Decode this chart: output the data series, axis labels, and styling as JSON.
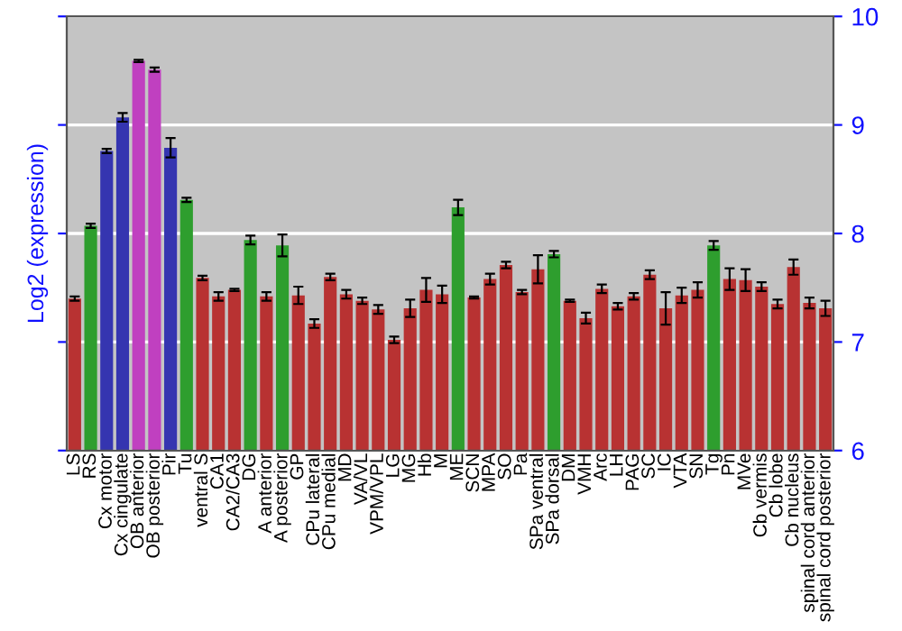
{
  "chart_data": {
    "type": "bar",
    "ylabel": "Log2 (expression)",
    "categories": [
      "LS",
      "RS",
      "Cx motor",
      "Cx cingulate",
      "OB anterior",
      "OB posterior",
      "Pir",
      "Tu",
      "ventral S",
      "CA1",
      "CA2/CA3",
      "DG",
      "A anterior",
      "A posterior",
      "GP",
      "CPu lateral",
      "CPu medial",
      "MD",
      "VA/VL",
      "VPM/VPL",
      "LG",
      "MG",
      "Hb",
      "M",
      "ME",
      "SCN",
      "MPA",
      "SO",
      "Pa",
      "SPa ventral",
      "SPa dorsal",
      "DM",
      "VMH",
      "Arc",
      "LH",
      "PAG",
      "SC",
      "IC",
      "VTA",
      "SN",
      "Tg",
      "Pn",
      "MVe",
      "Cb vermis",
      "Cb lobe",
      "Cb nucleus",
      "spinal cord anterior",
      "spinal cord posterior"
    ],
    "values": [
      7.4,
      8.07,
      8.76,
      9.07,
      9.59,
      9.51,
      8.79,
      8.31,
      7.59,
      7.42,
      7.48,
      7.94,
      7.42,
      7.89,
      7.43,
      7.17,
      7.6,
      7.44,
      7.38,
      7.3,
      7.02,
      7.31,
      7.48,
      7.44,
      8.24,
      7.41,
      7.58,
      7.71,
      7.46,
      7.67,
      7.81,
      7.38,
      7.22,
      7.49,
      7.33,
      7.42,
      7.62,
      7.31,
      7.43,
      7.48,
      7.89,
      7.58,
      7.57,
      7.51,
      7.35,
      7.69,
      7.36,
      7.31
    ],
    "errors": [
      0.02,
      0.02,
      0.02,
      0.04,
      0.01,
      0.02,
      0.09,
      0.02,
      0.02,
      0.04,
      0.01,
      0.04,
      0.04,
      0.1,
      0.08,
      0.04,
      0.03,
      0.04,
      0.03,
      0.04,
      0.03,
      0.08,
      0.11,
      0.08,
      0.07,
      0.01,
      0.05,
      0.03,
      0.02,
      0.13,
      0.03,
      0.01,
      0.05,
      0.04,
      0.03,
      0.03,
      0.04,
      0.15,
      0.07,
      0.07,
      0.04,
      0.1,
      0.1,
      0.04,
      0.04,
      0.07,
      0.05,
      0.07
    ],
    "colors": [
      "#b83232",
      "#2e9e2e",
      "#3535b0",
      "#3535b0",
      "#c040c0",
      "#c040c0",
      "#3535b0",
      "#2e9e2e",
      "#b83232",
      "#b83232",
      "#b83232",
      "#2e9e2e",
      "#b83232",
      "#2e9e2e",
      "#b83232",
      "#b83232",
      "#b83232",
      "#b83232",
      "#b83232",
      "#b83232",
      "#b83232",
      "#b83232",
      "#b83232",
      "#b83232",
      "#2e9e2e",
      "#b83232",
      "#b83232",
      "#b83232",
      "#b83232",
      "#b83232",
      "#2e9e2e",
      "#b83232",
      "#b83232",
      "#b83232",
      "#b83232",
      "#b83232",
      "#b83232",
      "#b83232",
      "#b83232",
      "#b83232",
      "#2e9e2e",
      "#b83232",
      "#b83232",
      "#b83232",
      "#b83232",
      "#b83232",
      "#b83232",
      "#b83232"
    ],
    "ylim": [
      6,
      10
    ],
    "yticks": [
      6,
      7,
      8,
      9,
      10
    ],
    "grid": "y"
  }
}
